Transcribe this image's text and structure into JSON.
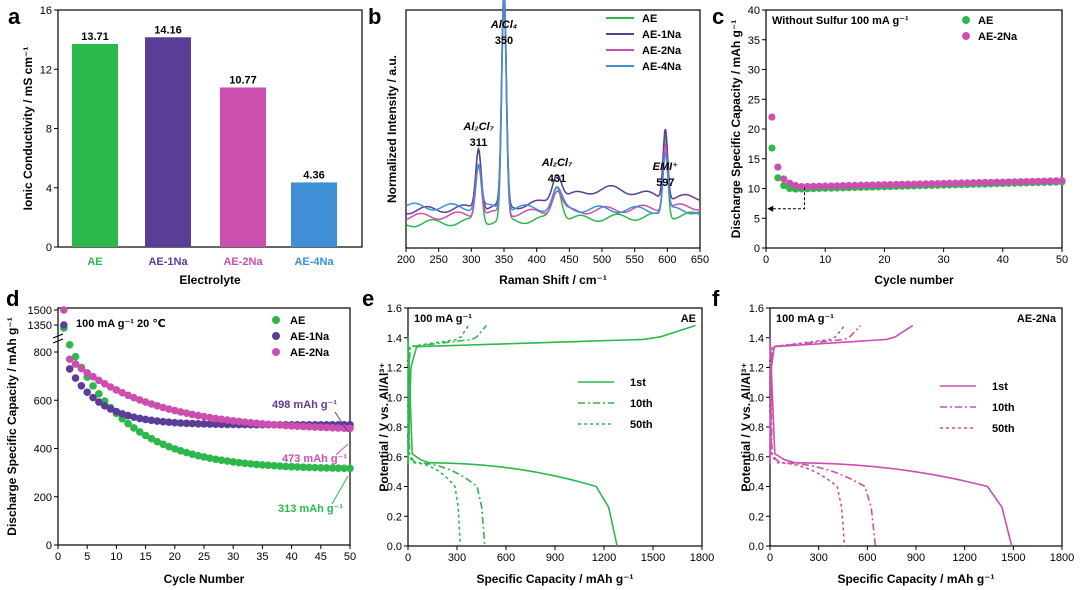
{
  "colors": {
    "AE": "#2db84b",
    "AE-1Na": "#5b3d98",
    "AE-2Na": "#cc4fb0",
    "AE-4Na": "#3f8fd6"
  },
  "panels": {
    "a": {
      "label": "a"
    },
    "b": {
      "label": "b"
    },
    "c": {
      "label": "c"
    },
    "d": {
      "label": "d"
    },
    "e": {
      "label": "e"
    },
    "f": {
      "label": "f"
    }
  },
  "chart_data": [
    {
      "id": "a",
      "type": "bar",
      "categories": [
        "AE",
        "AE-1Na",
        "AE-2Na",
        "AE-4Na"
      ],
      "values": [
        13.71,
        14.16,
        10.77,
        4.36
      ],
      "value_labels": [
        "13.71",
        "14.16",
        "10.77",
        "4.36"
      ],
      "xlabel": "Electrolyte",
      "ylabel": "Ionic Conductivity / mS cm⁻¹",
      "ylim": [
        0,
        16
      ],
      "yticks": [
        0,
        4,
        8,
        12,
        16
      ]
    },
    {
      "id": "b",
      "type": "line",
      "xlabel": "Raman Shift / cm⁻¹",
      "ylabel": "Normalized Intensity / a.u.",
      "xlim": [
        200,
        650
      ],
      "xticks": [
        200,
        250,
        300,
        350,
        400,
        450,
        500,
        550,
        600,
        650
      ],
      "ylim": [
        0,
        1
      ],
      "legend": [
        "AE",
        "AE-1Na",
        "AE-2Na",
        "AE-4Na"
      ],
      "peaks": [
        {
          "x": 311,
          "species": "Al₂Cl₇",
          "shift": "311"
        },
        {
          "x": 350,
          "species": "AlCl₄",
          "shift": "350"
        },
        {
          "x": 431,
          "species": "Al₂Cl₇",
          "shift": "431"
        },
        {
          "x": 597,
          "species": "EMI⁺",
          "shift": "597"
        }
      ],
      "series": [
        {
          "name": "AE",
          "base": [
            0.02,
            0.06
          ],
          "peak_heights": [
            0.34,
            1.0,
            0.16,
            0.38
          ]
        },
        {
          "name": "AE-1Na",
          "base": [
            0.08,
            0.14
          ],
          "peak_heights": [
            0.28,
            1.0,
            0.13,
            0.33
          ]
        },
        {
          "name": "AE-2Na",
          "base": [
            0.05,
            0.1
          ],
          "peak_heights": [
            0.24,
            1.0,
            0.1,
            0.3
          ]
        },
        {
          "name": "AE-4Na",
          "base": [
            0.1,
            0.08
          ],
          "peak_heights": [
            0.2,
            1.0,
            0.09,
            0.26
          ]
        }
      ]
    },
    {
      "id": "c",
      "type": "scatter",
      "annotation": "Without Sulfur  100 mA g⁻¹",
      "xlabel": "Cycle number",
      "ylabel": "Discharge Specific Capacity / mAh g⁻¹",
      "xlim": [
        0,
        50
      ],
      "xticks": [
        0,
        10,
        20,
        30,
        40,
        50
      ],
      "ylim": [
        0,
        40
      ],
      "yticks": [
        0,
        5,
        10,
        15,
        20,
        25,
        30,
        35,
        40
      ],
      "legend": [
        "AE",
        "AE-2Na"
      ],
      "series": [
        {
          "name": "AE",
          "start": [
            16.8,
            11.8,
            10.5,
            10.0,
            9.9
          ],
          "plateau": [
            9.9,
            11.1
          ]
        },
        {
          "name": "AE-2Na",
          "start": [
            22.0,
            13.6,
            11.6,
            10.9,
            10.5
          ],
          "plateau": [
            10.3,
            11.3
          ]
        }
      ]
    },
    {
      "id": "d",
      "type": "scatter",
      "annotation": "100 mA g⁻¹  20 ℃",
      "xlabel": "Cycle Number",
      "ylabel": "Discharge Specific Capacity / mAh g⁻¹",
      "xlim": [
        0,
        50
      ],
      "xticks": [
        0,
        5,
        10,
        15,
        20,
        25,
        30,
        35,
        40,
        45,
        50
      ],
      "ylim": [
        0,
        800
      ],
      "yticks": [
        0,
        200,
        400,
        600,
        800
      ],
      "ybreak_ticks": [
        1350,
        1500
      ],
      "legend": [
        "AE",
        "AE-1Na",
        "AE-2Na"
      ],
      "labels": [
        {
          "series": "AE-1Na",
          "text": "498 mAh g⁻¹"
        },
        {
          "series": "AE-2Na",
          "text": "473 mAh g⁻¹"
        },
        {
          "series": "AE",
          "text": "313 mAh g⁻¹"
        }
      ],
      "series": [
        {
          "name": "AE",
          "first": 1320,
          "start": 830,
          "end": 313,
          "k": 0.1
        },
        {
          "name": "AE-1Na",
          "first": 1350,
          "start": 730,
          "end": 498,
          "k": 0.18
        },
        {
          "name": "AE-2Na",
          "first": 1500,
          "start": 770,
          "end": 473,
          "k": 0.07
        }
      ]
    },
    {
      "id": "e",
      "type": "line",
      "annotation": "100 mA g⁻¹",
      "tag": "AE",
      "xlabel": "Specific Capacity / mAh g⁻¹",
      "ylabel": "Potential / V vs. Al/Al³⁺",
      "xlim": [
        0,
        1800
      ],
      "xticks": [
        0,
        300,
        600,
        900,
        1200,
        1500,
        1800
      ],
      "ylim": [
        0,
        1.6
      ],
      "yticks": [
        0,
        0.2,
        0.4,
        0.6,
        0.8,
        1.0,
        1.2,
        1.4,
        1.6
      ],
      "legend": [
        "1st",
        "10th",
        "50th"
      ],
      "series": [
        {
          "name": "1st",
          "discharge_end": 1280,
          "charge_end": 1760
        },
        {
          "name": "10th",
          "discharge_end": 470,
          "charge_end": 480
        },
        {
          "name": "50th",
          "discharge_end": 320,
          "charge_end": 370
        }
      ]
    },
    {
      "id": "f",
      "type": "line",
      "annotation": "100 mA g⁻¹",
      "tag": "AE-2Na",
      "xlabel": "Specific Capacity / mAh g⁻¹",
      "ylabel": "Potential / V vs. Al/Al³⁺",
      "xlim": [
        0,
        1800
      ],
      "xticks": [
        0,
        300,
        600,
        900,
        1200,
        1500,
        1800
      ],
      "ylim": [
        0,
        1.6
      ],
      "yticks": [
        0,
        0.2,
        0.4,
        0.6,
        0.8,
        1.0,
        1.2,
        1.4,
        1.6
      ],
      "legend": [
        "1st",
        "10th",
        "50th"
      ],
      "series": [
        {
          "name": "1st",
          "discharge_end": 1490,
          "charge_end": 880
        },
        {
          "name": "10th",
          "discharge_end": 650,
          "charge_end": 560
        },
        {
          "name": "50th",
          "discharge_end": 460,
          "charge_end": 460
        }
      ]
    }
  ]
}
